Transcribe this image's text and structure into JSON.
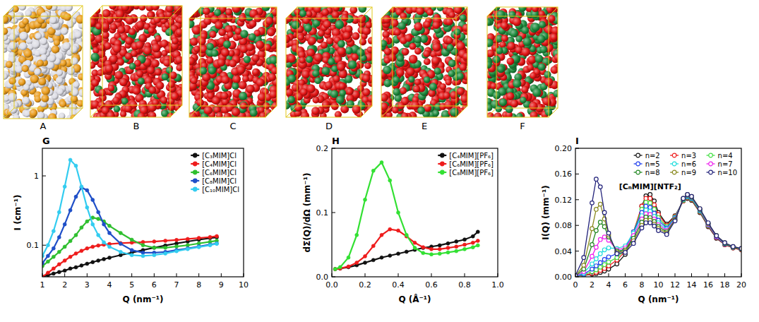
{
  "panels": [
    {
      "label": "A",
      "colors": [
        "#dcdce4",
        "#e99b1c"
      ]
    },
    {
      "label": "B",
      "colors": [
        "#e01212",
        "#1d8a3c"
      ]
    },
    {
      "label": "C",
      "colors": [
        "#e01212",
        "#1d8a3c"
      ]
    },
    {
      "label": "D",
      "colors": [
        "#e01212",
        "#1d8a3c"
      ]
    },
    {
      "label": "E",
      "colors": [
        "#e01212",
        "#1d8a3c"
      ]
    },
    {
      "label": "F",
      "colors": [
        "#e01212",
        "#1d8a3c"
      ]
    }
  ],
  "chart_data": [
    {
      "type": "line",
      "title": "G",
      "xlabel": "Q (nm⁻¹)",
      "ylabel": "I (cm⁻¹)",
      "x": [
        1,
        1.25,
        1.5,
        1.75,
        2,
        2.25,
        2.5,
        2.75,
        3,
        3.25,
        3.5,
        3.75,
        4,
        4.5,
        5,
        5.5,
        6,
        6.5,
        7,
        7.5,
        8,
        8.5,
        8.8
      ],
      "series": [
        {
          "name": "[C₃MIM]Cl",
          "color": "#111111",
          "values": [
            0.035,
            0.037,
            0.039,
            0.041,
            0.043,
            0.046,
            0.048,
            0.051,
            0.054,
            0.057,
            0.06,
            0.063,
            0.066,
            0.072,
            0.078,
            0.085,
            0.092,
            0.099,
            0.106,
            0.113,
            0.12,
            0.127,
            0.13
          ]
        },
        {
          "name": "[C₄MIM]Cl",
          "color": "#ee1c1c",
          "values": [
            0.035,
            0.04,
            0.046,
            0.053,
            0.06,
            0.068,
            0.076,
            0.083,
            0.09,
            0.095,
            0.099,
            0.102,
            0.104,
            0.107,
            0.109,
            0.111,
            0.113,
            0.116,
            0.119,
            0.123,
            0.127,
            0.131,
            0.135
          ]
        },
        {
          "name": "[C₆MIM]Cl",
          "color": "#2fbf2f",
          "values": [
            0.05,
            0.058,
            0.068,
            0.08,
            0.095,
            0.115,
            0.14,
            0.18,
            0.22,
            0.25,
            0.24,
            0.22,
            0.19,
            0.15,
            0.12,
            0.1,
            0.092,
            0.092,
            0.096,
            0.1,
            0.106,
            0.112,
            0.116
          ]
        },
        {
          "name": "[C₈MIM]Cl",
          "color": "#1f4fc8",
          "values": [
            0.055,
            0.07,
            0.09,
            0.13,
            0.2,
            0.32,
            0.5,
            0.68,
            0.62,
            0.45,
            0.3,
            0.2,
            0.15,
            0.105,
            0.085,
            0.078,
            0.078,
            0.08,
            0.085,
            0.09,
            0.096,
            0.102,
            0.106
          ]
        },
        {
          "name": "[C₁₀MIM]Cl",
          "color": "#33ccf0",
          "values": [
            0.07,
            0.1,
            0.16,
            0.3,
            0.7,
            1.7,
            1.4,
            0.7,
            0.35,
            0.2,
            0.14,
            0.11,
            0.095,
            0.08,
            0.072,
            0.07,
            0.072,
            0.076,
            0.082,
            0.088,
            0.094,
            0.1,
            0.105
          ]
        }
      ],
      "xlim": [
        1,
        10
      ],
      "ylim": [
        0.035,
        2.5
      ],
      "xticks": [
        1,
        2,
        3,
        4,
        5,
        6,
        7,
        8,
        9,
        10
      ],
      "yticks": [
        0.1,
        1
      ],
      "log": "y",
      "grid": false,
      "legend": "upper right",
      "marker": "circle"
    },
    {
      "type": "line",
      "title": "H",
      "xlabel": "Q (Å⁻¹)",
      "ylabel": "dΣ(Q)/dΩ (mm⁻¹)",
      "x": [
        0.02,
        0.05,
        0.1,
        0.15,
        0.2,
        0.25,
        0.3,
        0.35,
        0.4,
        0.45,
        0.5,
        0.55,
        0.6,
        0.65,
        0.7,
        0.75,
        0.8,
        0.85,
        0.88
      ],
      "series": [
        {
          "name": "[C₄MIM][PF₆]",
          "color": "#111111",
          "values": [
            0.012,
            0.013,
            0.015,
            0.018,
            0.022,
            0.026,
            0.03,
            0.033,
            0.036,
            0.039,
            0.042,
            0.045,
            0.047,
            0.049,
            0.052,
            0.055,
            0.058,
            0.063,
            0.07
          ]
        },
        {
          "name": "[C₆MIM][PF₆]",
          "color": "#ee1c1c",
          "values": [
            0.012,
            0.013,
            0.016,
            0.022,
            0.032,
            0.048,
            0.065,
            0.074,
            0.072,
            0.063,
            0.053,
            0.046,
            0.043,
            0.043,
            0.045,
            0.047,
            0.05,
            0.053,
            0.056
          ]
        },
        {
          "name": "[C₈MIM][PF₆]",
          "color": "#33e033",
          "values": [
            0.012,
            0.015,
            0.03,
            0.065,
            0.12,
            0.165,
            0.178,
            0.15,
            0.1,
            0.065,
            0.045,
            0.037,
            0.035,
            0.036,
            0.038,
            0.04,
            0.043,
            0.046,
            0.049
          ]
        }
      ],
      "xlim": [
        0,
        1
      ],
      "ylim": [
        0,
        0.2
      ],
      "xticks": [
        {
          "value": 0,
          "label": "0.0"
        },
        0.2,
        0.4,
        0.6,
        0.8,
        {
          "value": 1,
          "label": "1.0"
        }
      ],
      "yticks": [
        {
          "value": 0,
          "label": "0.0"
        },
        0.1,
        0.2
      ],
      "grid": false,
      "legend": "upper right",
      "marker": "circle"
    },
    {
      "type": "line",
      "title": "I",
      "xlabel": "Q (nm⁻¹)",
      "ylabel": "I(Q) (mm⁻¹)",
      "annotations": [
        "[CₙMIM][NTF₂]"
      ],
      "x": [
        0,
        1,
        2,
        2.5,
        3,
        3.5,
        4,
        5,
        6,
        7,
        8,
        8.5,
        9,
        9.5,
        10,
        11,
        12,
        13,
        13.5,
        14,
        15,
        16,
        17,
        18,
        19,
        20
      ],
      "series": [
        {
          "name": "n=2",
          "color": "#111111",
          "values": [
            0.001,
            0.002,
            0.004,
            0.005,
            0.007,
            0.009,
            0.012,
            0.02,
            0.035,
            0.065,
            0.11,
            0.126,
            0.128,
            0.118,
            0.1,
            0.082,
            0.095,
            0.118,
            0.122,
            0.119,
            0.1,
            0.078,
            0.06,
            0.05,
            0.045,
            0.042
          ]
        },
        {
          "name": "n=3",
          "color": "#ee2020",
          "values": [
            0.001,
            0.002,
            0.005,
            0.007,
            0.01,
            0.013,
            0.017,
            0.026,
            0.04,
            0.07,
            0.11,
            0.122,
            0.122,
            0.112,
            0.097,
            0.08,
            0.094,
            0.118,
            0.123,
            0.12,
            0.101,
            0.079,
            0.061,
            0.05,
            0.045,
            0.042
          ]
        },
        {
          "name": "n=4",
          "color": "#44e044",
          "values": [
            0.001,
            0.003,
            0.008,
            0.011,
            0.015,
            0.019,
            0.023,
            0.03,
            0.042,
            0.07,
            0.105,
            0.116,
            0.115,
            0.105,
            0.092,
            0.078,
            0.093,
            0.119,
            0.124,
            0.121,
            0.102,
            0.08,
            0.062,
            0.051,
            0.046,
            0.043
          ]
        },
        {
          "name": "n=5",
          "color": "#2040ee",
          "values": [
            0.001,
            0.004,
            0.012,
            0.017,
            0.022,
            0.027,
            0.031,
            0.036,
            0.045,
            0.07,
            0.1,
            0.11,
            0.108,
            0.099,
            0.088,
            0.076,
            0.092,
            0.12,
            0.125,
            0.122,
            0.103,
            0.081,
            0.062,
            0.051,
            0.046,
            0.043
          ]
        },
        {
          "name": "n=6",
          "color": "#22dddd",
          "values": [
            0.001,
            0.006,
            0.02,
            0.028,
            0.036,
            0.042,
            0.045,
            0.044,
            0.048,
            0.068,
            0.095,
            0.104,
            0.102,
            0.094,
            0.084,
            0.074,
            0.091,
            0.12,
            0.126,
            0.123,
            0.104,
            0.082,
            0.063,
            0.052,
            0.046,
            0.043
          ]
        },
        {
          "name": "n=7",
          "color": "#ee22ee",
          "values": [
            0.001,
            0.008,
            0.032,
            0.046,
            0.058,
            0.062,
            0.057,
            0.042,
            0.045,
            0.064,
            0.09,
            0.098,
            0.097,
            0.09,
            0.081,
            0.072,
            0.09,
            0.121,
            0.127,
            0.124,
            0.105,
            0.082,
            0.063,
            0.052,
            0.046,
            0.043
          ]
        },
        {
          "name": "n=8",
          "color": "#228822",
          "values": [
            0.001,
            0.012,
            0.05,
            0.072,
            0.085,
            0.078,
            0.062,
            0.04,
            0.042,
            0.06,
            0.085,
            0.093,
            0.092,
            0.086,
            0.078,
            0.07,
            0.089,
            0.121,
            0.127,
            0.124,
            0.105,
            0.083,
            0.064,
            0.052,
            0.046,
            0.043
          ]
        },
        {
          "name": "n=9",
          "color": "#8a8a20",
          "values": [
            0.001,
            0.018,
            0.075,
            0.105,
            0.113,
            0.09,
            0.065,
            0.038,
            0.04,
            0.056,
            0.08,
            0.088,
            0.088,
            0.082,
            0.075,
            0.068,
            0.088,
            0.122,
            0.128,
            0.125,
            0.106,
            0.083,
            0.064,
            0.053,
            0.047,
            0.044
          ]
        },
        {
          "name": "n=10",
          "color": "#22227a",
          "values": [
            0.002,
            0.03,
            0.115,
            0.152,
            0.14,
            0.1,
            0.068,
            0.036,
            0.038,
            0.052,
            0.076,
            0.084,
            0.084,
            0.079,
            0.072,
            0.066,
            0.087,
            0.122,
            0.128,
            0.125,
            0.106,
            0.084,
            0.064,
            0.053,
            0.047,
            0.044
          ]
        }
      ],
      "xlim": [
        0,
        20
      ],
      "ylim": [
        0,
        0.2
      ],
      "xticks": [
        0,
        2,
        4,
        6,
        8,
        10,
        12,
        14,
        16,
        18,
        20
      ],
      "yticks": [
        {
          "value": 0,
          "label": "0.00"
        },
        {
          "value": 0.04,
          "label": "0.04"
        },
        {
          "value": 0.08,
          "label": "0.08"
        },
        {
          "value": 0.12,
          "label": "0.12"
        },
        {
          "value": 0.16,
          "label": "0.16"
        },
        {
          "value": 0.2,
          "label": "0.20"
        }
      ],
      "grid": false,
      "legend": "upper right",
      "marker": "open-circle"
    }
  ]
}
